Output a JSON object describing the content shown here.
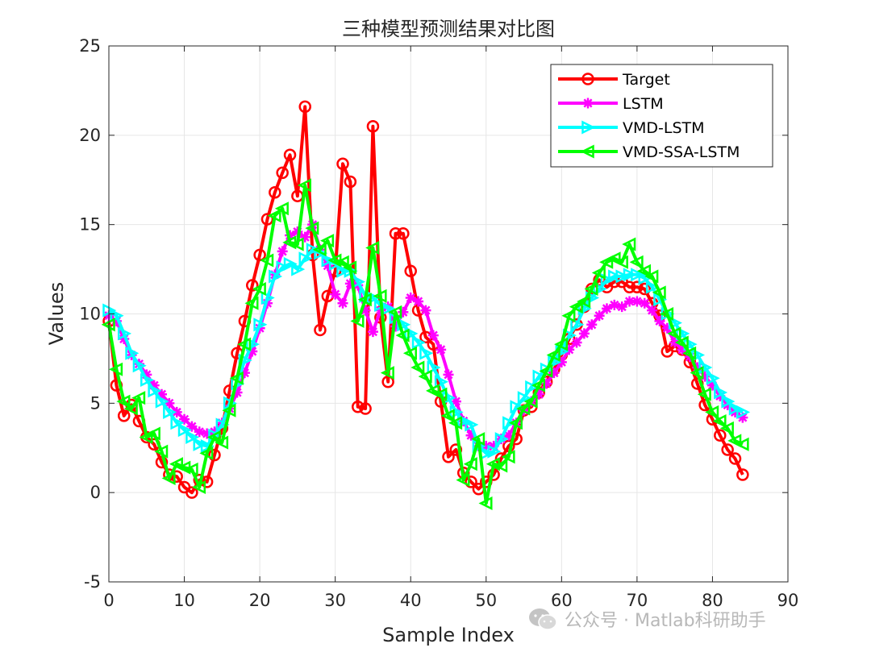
{
  "watermark": {
    "text": "公众号 · Matlab科研助手",
    "icon": "wechat-icon"
  },
  "chart_data": {
    "type": "line",
    "title": "三种模型预测结果对比图",
    "xlabel": "Sample Index",
    "ylabel": "Values",
    "xlim": [
      0,
      90
    ],
    "ylim": [
      -5,
      25
    ],
    "xticks": [
      "0",
      "10",
      "20",
      "30",
      "40",
      "50",
      "60",
      "70",
      "80",
      "90"
    ],
    "yticks": [
      "-5",
      "0",
      "5",
      "10",
      "15",
      "20",
      "25"
    ],
    "grid": true,
    "legend": "top-right",
    "series": [
      {
        "name": "Target",
        "color": "#ff0000",
        "marker": "circle",
        "values": [
          9.6,
          6.0,
          4.3,
          4.9,
          4.0,
          3.1,
          2.7,
          1.7,
          1.0,
          0.9,
          0.3,
          0.0,
          0.7,
          0.6,
          2.1,
          3.6,
          5.7,
          7.8,
          9.6,
          11.6,
          13.3,
          15.3,
          16.8,
          17.9,
          18.9,
          16.6,
          21.6,
          13.3,
          9.1,
          11.0,
          12.4,
          18.4,
          17.4,
          4.8,
          4.7,
          20.5,
          9.8,
          6.2,
          14.5,
          14.5,
          12.4,
          10.2,
          8.7,
          8.3,
          5.1,
          2.0,
          2.4,
          1.1,
          0.6,
          0.2,
          0.6,
          1.0,
          1.9,
          2.6,
          3.0,
          4.6,
          4.8,
          5.6,
          6.2,
          6.9,
          7.7,
          8.6,
          9.4,
          10.4,
          11.4,
          11.9,
          11.5,
          11.8,
          11.8,
          11.5,
          11.5,
          11.4,
          10.6,
          9.9,
          7.9,
          8.2,
          8.0,
          7.3,
          6.1,
          4.9,
          4.1,
          3.2,
          2.4,
          1.9,
          1.0
        ]
      },
      {
        "name": "LSTM",
        "color": "#ff00ff",
        "marker": "asterisk",
        "values": [
          9.9,
          9.6,
          8.6,
          7.7,
          7.2,
          6.6,
          6.0,
          5.5,
          5.0,
          4.5,
          4.1,
          3.7,
          3.4,
          3.3,
          3.4,
          3.9,
          4.7,
          5.6,
          6.7,
          7.9,
          9.2,
          10.6,
          12.2,
          13.5,
          14.4,
          14.6,
          14.3,
          15.0,
          13.6,
          12.7,
          11.1,
          10.6,
          11.7,
          11.6,
          10.2,
          9.0,
          10.2,
          10.4,
          9.3,
          10.1,
          10.9,
          10.7,
          10.2,
          8.8,
          8.0,
          6.6,
          5.1,
          4.0,
          3.2,
          2.6,
          2.6,
          2.6,
          3.0,
          3.2,
          3.9,
          4.6,
          5.1,
          5.5,
          6.1,
          6.7,
          7.3,
          8.0,
          8.4,
          8.9,
          9.4,
          9.9,
          10.3,
          10.5,
          10.4,
          10.7,
          10.7,
          10.6,
          10.2,
          9.6,
          9.2,
          8.4,
          8.0,
          7.6,
          7.0,
          6.5,
          6.0,
          5.4,
          4.9,
          4.5,
          4.2
        ]
      },
      {
        "name": "VMD-LSTM",
        "color": "#00ffff",
        "marker": "triangle-right",
        "values": [
          10.2,
          9.9,
          8.9,
          7.8,
          7.1,
          6.3,
          5.7,
          5.1,
          4.5,
          3.9,
          3.5,
          3.1,
          2.7,
          2.6,
          3.2,
          3.8,
          5.0,
          6.1,
          7.4,
          8.3,
          9.4,
          10.9,
          12.1,
          12.6,
          12.8,
          12.5,
          13.1,
          13.6,
          13.4,
          13.0,
          12.8,
          12.4,
          12.4,
          11.8,
          11.0,
          10.9,
          10.5,
          10.3,
          9.8,
          9.4,
          8.9,
          8.4,
          7.8,
          7.0,
          6.2,
          5.3,
          4.5,
          4.0,
          3.8,
          2.6,
          2.2,
          2.3,
          3.0,
          3.9,
          4.8,
          5.3,
          5.9,
          6.5,
          6.9,
          7.3,
          7.9,
          8.8,
          9.4,
          10.3,
          10.9,
          11.4,
          11.9,
          12.1,
          12.1,
          12.2,
          12.2,
          12.0,
          11.5,
          10.8,
          10.0,
          9.5,
          8.9,
          8.3,
          7.7,
          7.0,
          6.4,
          5.6,
          5.1,
          4.7,
          4.5
        ]
      },
      {
        "name": "VMD-SSA-LSTM",
        "color": "#00ff00",
        "marker": "triangle-left",
        "values": [
          9.4,
          6.9,
          5.1,
          4.7,
          5.3,
          3.1,
          3.3,
          2.3,
          0.8,
          1.6,
          1.4,
          1.3,
          0.3,
          2.2,
          3.1,
          2.8,
          4.6,
          6.4,
          8.3,
          10.6,
          11.4,
          13.0,
          15.5,
          15.9,
          14.0,
          13.9,
          17.2,
          14.8,
          13.6,
          14.1,
          13.0,
          12.9,
          12.6,
          9.6,
          10.8,
          13.7,
          11.0,
          6.7,
          10.1,
          8.8,
          7.8,
          7.0,
          6.5,
          5.7,
          5.5,
          4.3,
          3.9,
          0.7,
          1.6,
          3.0,
          -0.6,
          1.6,
          1.5,
          2.0,
          3.9,
          4.7,
          5.1,
          6.0,
          6.8,
          7.7,
          8.3,
          9.9,
          10.4,
          10.7,
          11.4,
          12.3,
          12.9,
          13.1,
          12.9,
          13.9,
          12.9,
          12.4,
          12.1,
          11.2,
          10.0,
          8.9,
          8.4,
          7.8,
          6.7,
          5.5,
          4.5,
          4.0,
          3.6,
          2.9,
          2.7
        ]
      }
    ]
  }
}
